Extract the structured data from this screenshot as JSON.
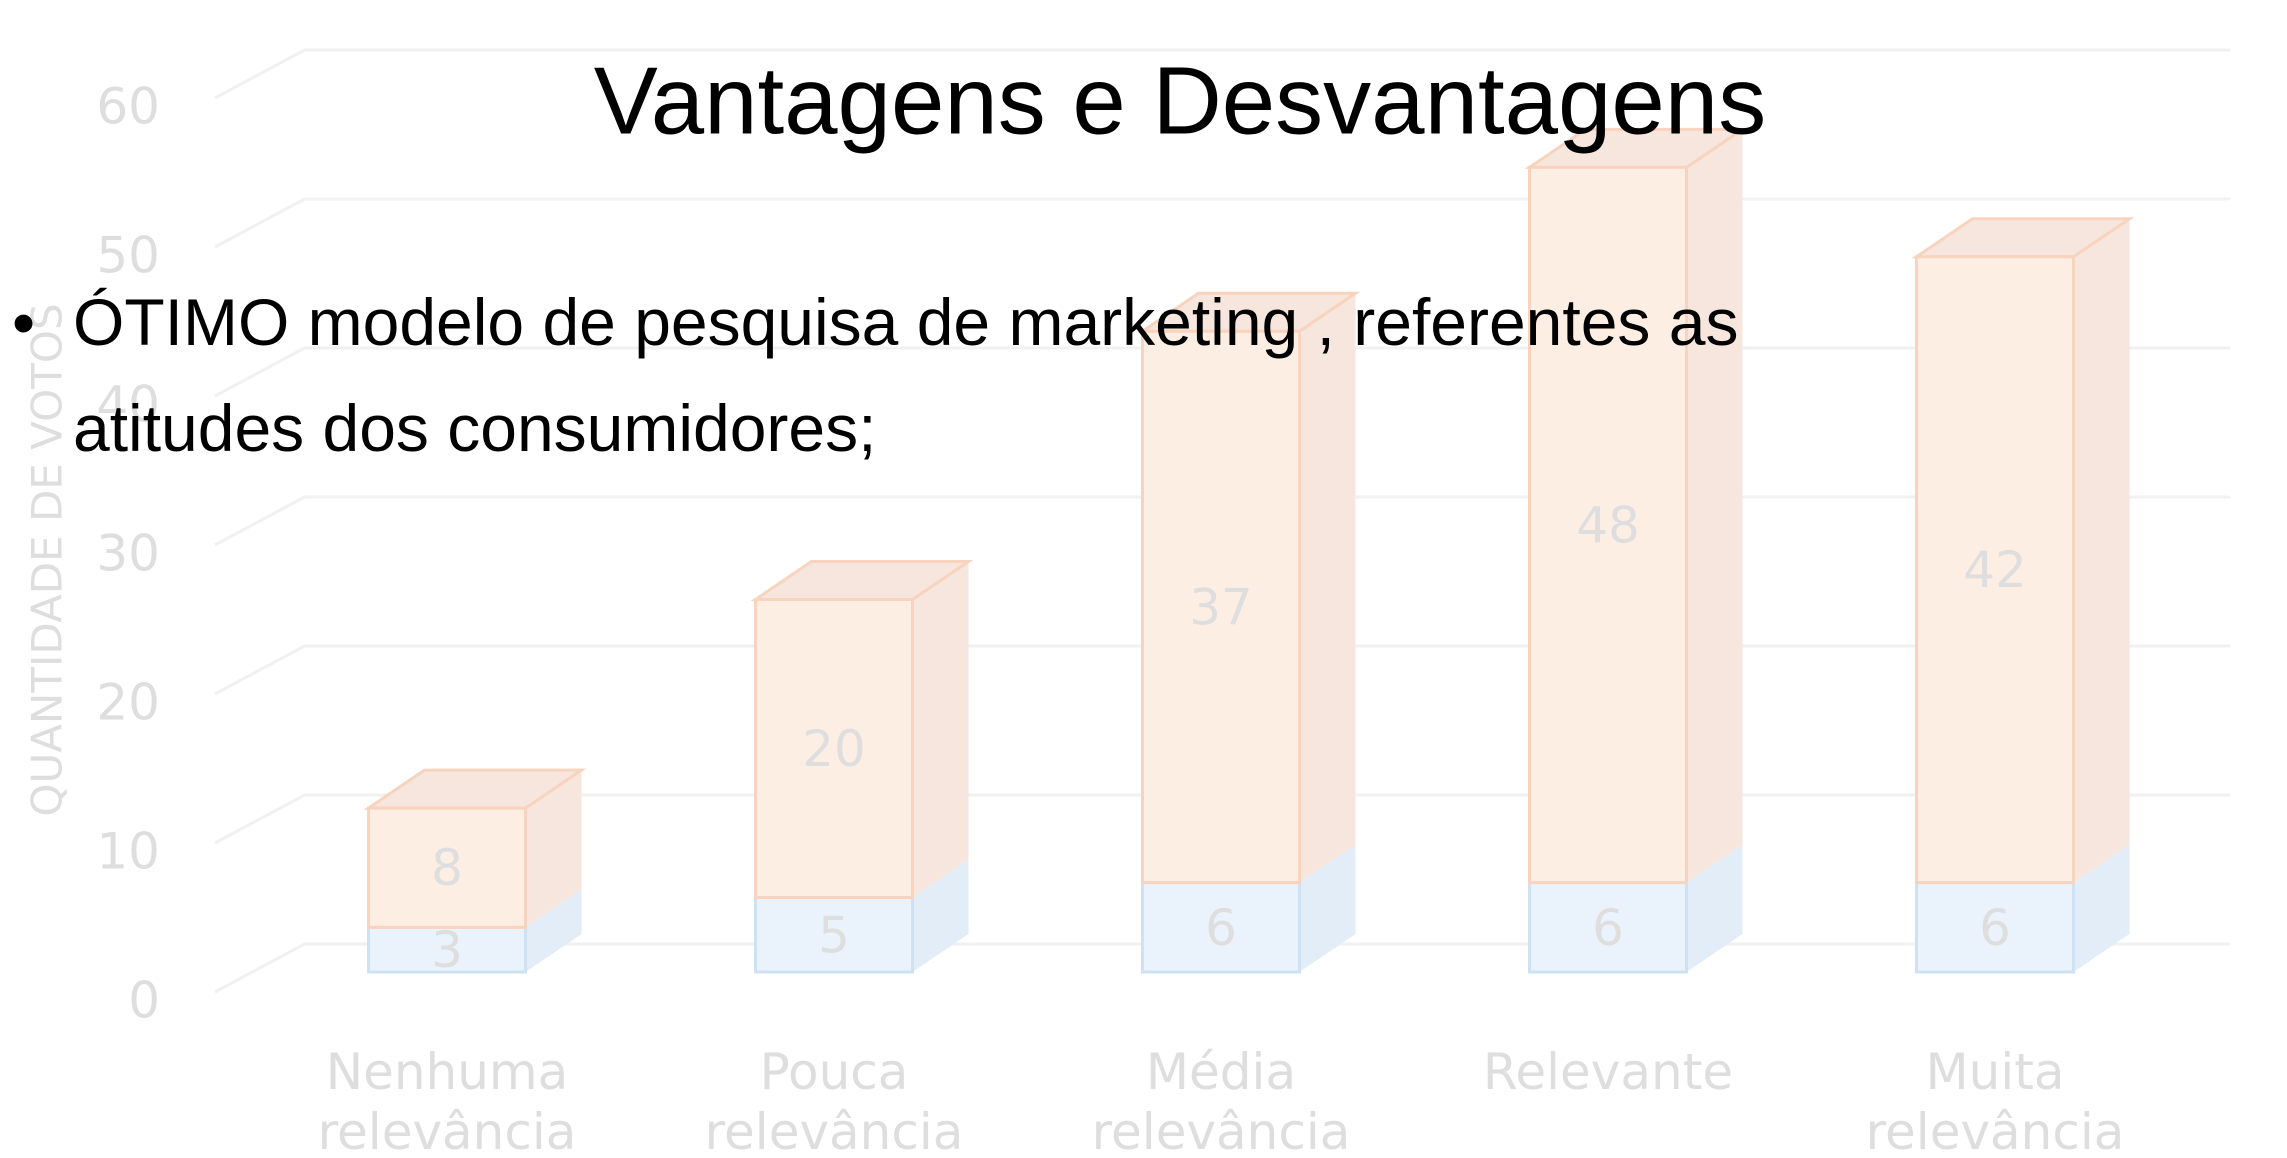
{
  "title": "Vantagens e Desvantagens",
  "bullets": [
    "ÓTIMO modelo de pesquisa de marketing , referentes as atitudes dos consumidores;"
  ],
  "chart_data": {
    "type": "bar3d_stacked",
    "y_label": "QUANTIDADE DE VOTOS",
    "categories": [
      "Nenhuma relevância",
      "Pouca relevância",
      "Média relevância",
      "Relevante",
      "Muita relevância"
    ],
    "series": [
      {
        "color": "#eaf3fb",
        "values": [
          3,
          5,
          6,
          6,
          6
        ]
      },
      {
        "color": "#fdeee4",
        "values": [
          8,
          20,
          37,
          48,
          42
        ]
      }
    ],
    "ylim": [
      0,
      60
    ],
    "yticks": [
      0,
      10,
      20,
      30,
      40,
      50,
      60
    ],
    "grid": true
  }
}
